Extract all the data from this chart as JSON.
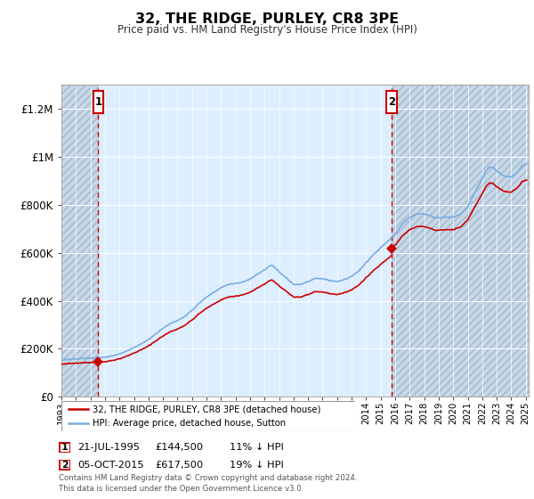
{
  "title": "32, THE RIDGE, PURLEY, CR8 3PE",
  "subtitle": "Price paid vs. HM Land Registry's House Price Index (HPI)",
  "legend_line1": "32, THE RIDGE, PURLEY, CR8 3PE (detached house)",
  "legend_line2": "HPI: Average price, detached house, Sutton",
  "sale1_date": "21-JUL-1995",
  "sale1_price": 144500,
  "sale2_date": "05-OCT-2015",
  "sale2_price": 617500,
  "sale1_pct": "11% ↓ HPI",
  "sale2_pct": "19% ↓ HPI",
  "footer": "Contains HM Land Registry data © Crown copyright and database right 2024.\nThis data is licensed under the Open Government Licence v3.0.",
  "sale_color": "#cc0000",
  "hpi_color": "#7aade0",
  "plot_bg": "#ddeeff",
  "hatch_bg": "#c8d8e8",
  "ylim": [
    0,
    1300000
  ],
  "yticks": [
    0,
    200000,
    400000,
    600000,
    800000,
    1000000,
    1200000
  ],
  "ytick_labels": [
    "£0",
    "£200K",
    "£400K",
    "£600K",
    "£800K",
    "£1M",
    "£1.2M"
  ],
  "xmin": 1993.0,
  "xmax": 2025.2,
  "sale1_year": 1995.54,
  "sale2_year": 2015.76
}
